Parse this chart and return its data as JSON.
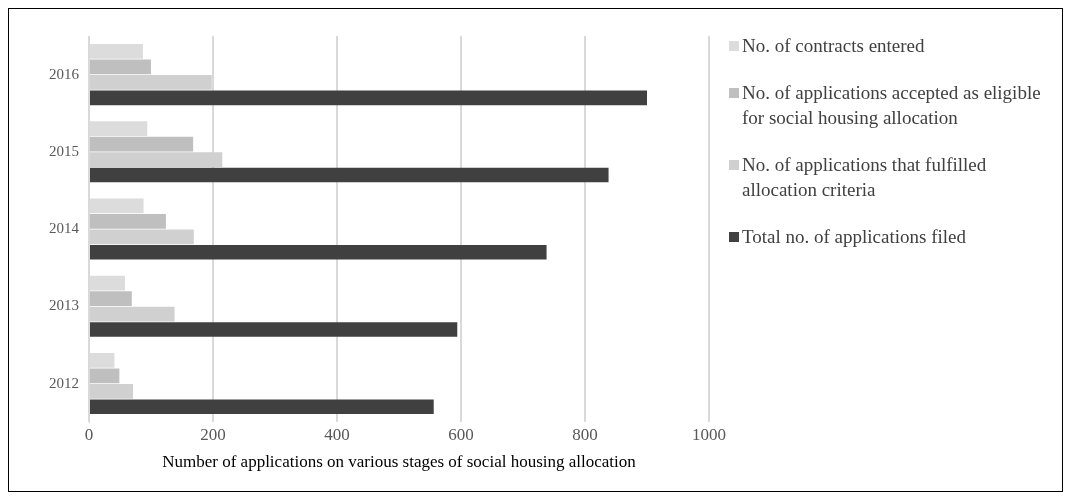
{
  "chart_data": {
    "type": "bar",
    "orientation": "horizontal",
    "xlabel": "Number of applications on various stages of social housing allocation",
    "categories": [
      "2016",
      "2015",
      "2014",
      "2013",
      "2012"
    ],
    "series": [
      {
        "name": "No. of contracts entered",
        "color": "#dcdcdc",
        "values": [
          87,
          94,
          88,
          58,
          41
        ]
      },
      {
        "name": "No. of applications accepted as eligible for social housing allocation",
        "color": "#bfbfbf",
        "values": [
          100,
          168,
          124,
          69,
          49
        ]
      },
      {
        "name": "No. of applications that fulfilled allocation criteria",
        "color": "#d0d0d0",
        "values": [
          198,
          215,
          169,
          138,
          71
        ]
      },
      {
        "name": "Total no. of applications filed",
        "color": "#404040",
        "values": [
          900,
          838,
          738,
          594,
          556
        ]
      }
    ],
    "xlim": [
      0,
      1000
    ],
    "xticks": [
      0,
      200,
      400,
      600,
      800,
      1000
    ],
    "grid": "x",
    "legend": "right"
  }
}
